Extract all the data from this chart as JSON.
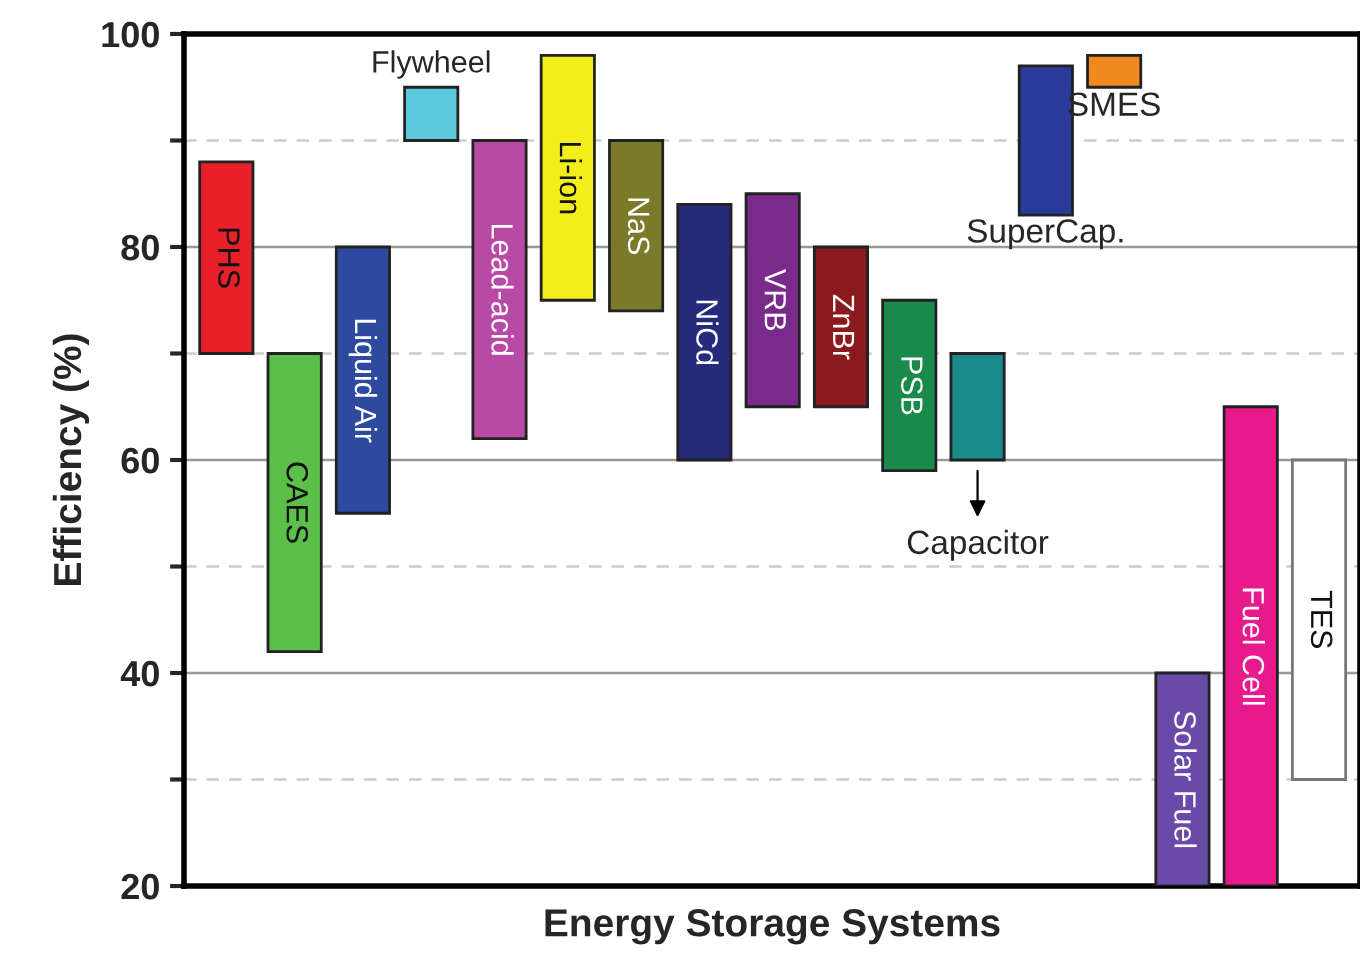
{
  "chart_data": {
    "type": "bar",
    "xlabel": "Energy Storage Systems",
    "ylabel": "Efficiency (%)",
    "categories": [
      "PHS",
      "CAES",
      "Liquid Air",
      "Flywheel",
      "Lead-acid",
      "Li-ion",
      "NaS",
      "NiCd",
      "VRB",
      "ZnBr",
      "PSB",
      "Capacitor",
      "SuperCap.",
      "SMES",
      "Solar Fuel",
      "Fuel Cell",
      "TES"
    ],
    "base": [
      70,
      42,
      55,
      90,
      62,
      75,
      74,
      60,
      65,
      65,
      59,
      60,
      83,
      95,
      20,
      20,
      30
    ],
    "values": [
      18,
      28,
      25,
      5,
      28,
      23,
      16,
      24,
      20,
      15,
      16,
      10,
      14,
      3,
      20,
      45,
      30
    ],
    "colors": [
      "#e8202a",
      "#5cbf4a",
      "#2e4aa0",
      "#5bc8dc",
      "#b84aa6",
      "#f2ee1c",
      "#7a7a2a",
      "#252a7a",
      "#7a2a8a",
      "#8a1a1e",
      "#1a8a4a",
      "#1a8a8a",
      "#2a3a9a",
      "#f08a20",
      "#6a4aa8",
      "#e8198a",
      "#ffffff"
    ],
    "ylim": [
      20,
      100
    ],
    "yticks": [
      20,
      {
        "value": 30,
        "label": null
      },
      40,
      {
        "value": 50,
        "label": null
      },
      60,
      {
        "value": 70,
        "label": null
      },
      80,
      {
        "value": 90,
        "label": null
      },
      100
    ],
    "grid": "y",
    "tick_labels": "y"
  }
}
